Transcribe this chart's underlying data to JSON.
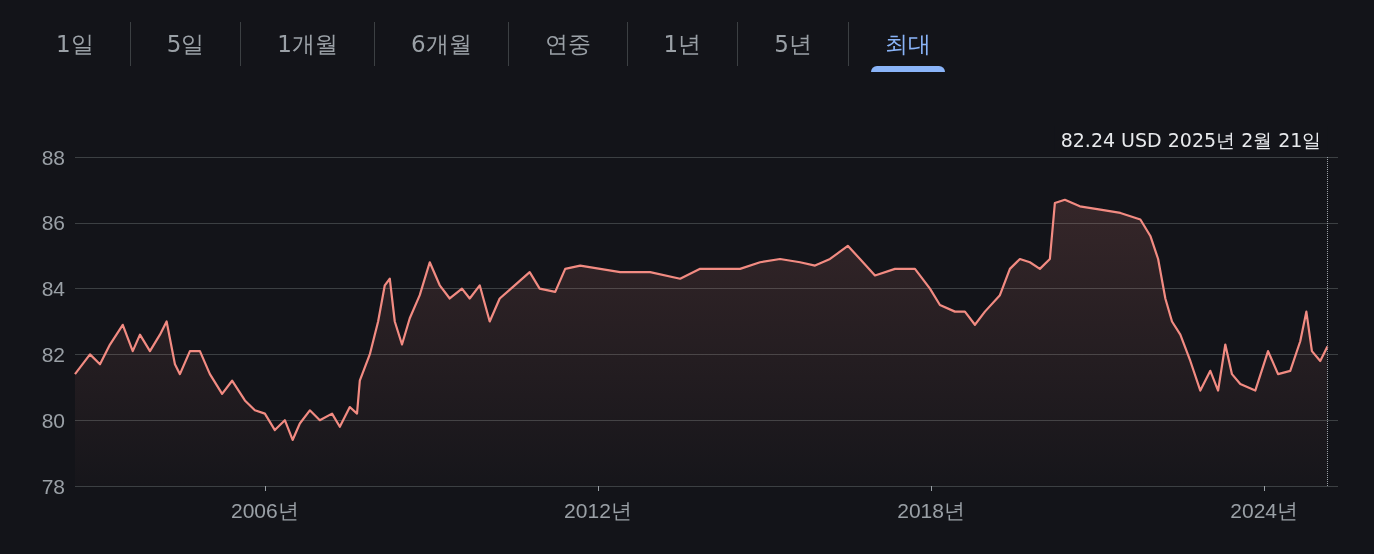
{
  "chart_data": {
    "type": "area",
    "x": [
      2002.58,
      2002.85,
      2003.03,
      2003.21,
      2003.44,
      2003.62,
      2003.75,
      2003.93,
      2004.11,
      2004.23,
      2004.38,
      2004.47,
      2004.65,
      2004.83,
      2005.01,
      2005.23,
      2005.41,
      2005.64,
      2005.82,
      2006.0,
      2006.18,
      2006.36,
      2006.5,
      2006.63,
      2006.81,
      2006.99,
      2007.21,
      2007.35,
      2007.53,
      2007.66,
      2007.71,
      2007.89,
      2008.04,
      2008.16,
      2008.25,
      2008.34,
      2008.47,
      2008.61,
      2008.79,
      2008.97,
      2009.15,
      2009.33,
      2009.55,
      2009.69,
      2009.87,
      2010.05,
      2010.23,
      2010.5,
      2010.77,
      2010.95,
      2011.23,
      2011.41,
      2011.68,
      2012.04,
      2012.4,
      2012.94,
      2013.48,
      2013.84,
      2014.56,
      2014.92,
      2015.28,
      2015.64,
      2015.91,
      2016.18,
      2016.5,
      2016.72,
      2016.99,
      2017.35,
      2017.71,
      2017.98,
      2018.16,
      2018.43,
      2018.61,
      2018.79,
      2018.97,
      2019.24,
      2019.42,
      2019.6,
      2019.78,
      2019.96,
      2020.14,
      2020.23,
      2020.41,
      2020.68,
      2021.05,
      2021.41,
      2021.77,
      2021.95,
      2022.09,
      2022.22,
      2022.34,
      2022.49,
      2022.67,
      2022.85,
      2023.03,
      2023.17,
      2023.3,
      2023.42,
      2023.57,
      2023.84,
      2024.07,
      2024.25,
      2024.47,
      2024.65,
      2024.76,
      2024.86,
      2025.01,
      2025.14
    ],
    "series": [
      {
        "color": "#f28b82",
        "values": [
          81.4,
          82.0,
          81.7,
          82.3,
          82.9,
          82.1,
          82.6,
          82.1,
          82.6,
          83.0,
          81.7,
          81.4,
          82.1,
          82.1,
          81.4,
          80.8,
          81.2,
          80.6,
          80.3,
          80.2,
          79.7,
          80.0,
          79.4,
          79.9,
          80.3,
          80.0,
          80.2,
          79.8,
          80.4,
          80.2,
          81.2,
          82.0,
          83.0,
          84.1,
          84.3,
          83.0,
          82.3,
          83.1,
          83.8,
          84.8,
          84.1,
          83.7,
          84.0,
          83.7,
          84.1,
          83.0,
          83.7,
          84.1,
          84.5,
          84.0,
          83.9,
          84.6,
          84.7,
          84.6,
          84.5,
          84.5,
          84.3,
          84.6,
          84.6,
          84.8,
          84.9,
          84.8,
          84.7,
          84.9,
          85.3,
          84.9,
          84.4,
          84.6,
          84.6,
          84.0,
          83.5,
          83.3,
          83.3,
          82.9,
          83.3,
          83.8,
          84.6,
          84.9,
          84.8,
          84.6,
          84.9,
          86.6,
          86.7,
          86.5,
          86.4,
          86.3,
          86.1,
          85.6,
          84.9,
          83.7,
          83.0,
          82.6,
          81.8,
          80.9,
          81.5,
          80.9,
          82.3,
          81.4,
          81.1,
          80.9,
          82.1,
          81.4,
          81.5,
          82.4,
          83.3,
          82.1,
          81.8,
          82.24
        ]
      }
    ],
    "xlim": [
      2002.58,
      2025.33
    ],
    "xticks": [
      {
        "value": 2006,
        "label": "2006년"
      },
      {
        "value": 2012,
        "label": "2012년"
      },
      {
        "value": 2018,
        "label": "2018년"
      },
      {
        "value": 2024,
        "label": "2024년"
      }
    ],
    "ylim": [
      78,
      88
    ],
    "yticks": [
      78,
      80,
      82,
      84,
      86,
      88
    ],
    "grid": "y",
    "marker": "none",
    "line_style": "solid",
    "ref_lines": [
      {
        "axis": "x",
        "value": 2025.14,
        "label": "82.24 USD 2025년 2월 21일",
        "line_style": "dotted",
        "color": "#9aa0a6"
      }
    ],
    "annotations": [
      "1일",
      "5일",
      "1개월",
      "6개월",
      "연중",
      "1년",
      "5년",
      "최대"
    ]
  }
}
